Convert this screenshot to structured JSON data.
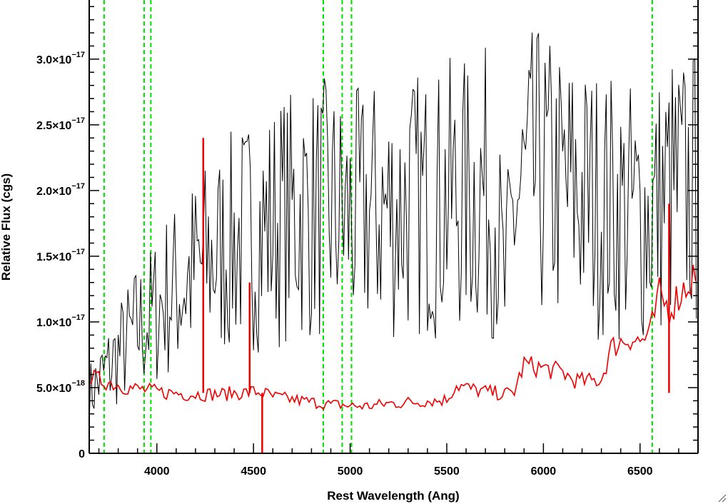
{
  "chart_data": {
    "type": "line",
    "title": "",
    "xlabel": "Rest Wavelength (Ang)",
    "ylabel": "Relative Flux (cgs)",
    "xlim": [
      3650,
      6800
    ],
    "ylim": [
      0,
      3.45e-17
    ],
    "x_ticks": [
      {
        "value": 4000,
        "label": "4000"
      },
      {
        "value": 4500,
        "label": "4500"
      },
      {
        "value": 5000,
        "label": "5000"
      },
      {
        "value": 5500,
        "label": "5500"
      },
      {
        "value": 6000,
        "label": "6000"
      },
      {
        "value": 6500,
        "label": "6500"
      }
    ],
    "y_ticks": [
      {
        "value": 0,
        "mantissa": "0",
        "exponent": ""
      },
      {
        "value": 5e-18,
        "mantissa": "5.0×10",
        "exponent": "−18"
      },
      {
        "value": 1e-17,
        "mantissa": "1.0×10",
        "exponent": "−17"
      },
      {
        "value": 1.5e-17,
        "mantissa": "1.5×10",
        "exponent": "−17"
      },
      {
        "value": 2e-17,
        "mantissa": "2.0×10",
        "exponent": "−17"
      },
      {
        "value": 2.5e-17,
        "mantissa": "2.5×10",
        "exponent": "−17"
      },
      {
        "value": 3e-17,
        "mantissa": "3.0×10",
        "exponent": "−17"
      }
    ],
    "grid": false,
    "legend": "none",
    "series": [
      {
        "color": "#000000",
        "x": [
          3650,
          3700,
          3750,
          3800,
          3850,
          3900,
          3950,
          4000,
          4050,
          4100,
          4150,
          4200,
          4250,
          4300,
          4350,
          4400,
          4450,
          4500,
          4550,
          4600,
          4650,
          4700,
          4750,
          4800,
          4850,
          4900,
          4950,
          5000,
          5050,
          5100,
          5150,
          5200,
          5250,
          5300,
          5350,
          5400,
          5450,
          5500,
          5550,
          5600,
          5650,
          5700,
          5750,
          5800,
          5850,
          5900,
          5950,
          6000,
          6050,
          6100,
          6150,
          6200,
          6250,
          6300,
          6350,
          6400,
          6450,
          6500,
          6550,
          6600,
          6650,
          6700,
          6750,
          6800
        ],
        "values": [
          4.5e-18,
          5.5e-18,
          6.5e-18,
          7.5e-18,
          8.5e-18,
          9.5e-18,
          1e-17,
          1.1e-17,
          1.2e-17,
          1.25e-17,
          1.3e-17,
          1.4e-17,
          1.45e-17,
          1.5e-17,
          1.55e-17,
          1.6e-17,
          1.65e-17,
          1.7e-17,
          1.7e-17,
          1.75e-17,
          1.8e-17,
          1.8e-17,
          1.85e-17,
          1.85e-17,
          1.85e-17,
          1.85e-17,
          1.8e-17,
          1.8e-17,
          1.8e-17,
          1.85e-17,
          1.85e-17,
          1.85e-17,
          1.85e-17,
          1.9e-17,
          1.9e-17,
          1.9e-17,
          1.9e-17,
          1.95e-17,
          1.95e-17,
          1.95e-17,
          2e-17,
          2e-17,
          1.9e-17,
          1.2e-17,
          1.9e-17,
          2e-17,
          2.1e-17,
          2.1e-17,
          2.05e-17,
          2e-17,
          2e-17,
          1.95e-17,
          1.95e-17,
          1.9e-17,
          1.9e-17,
          1.85e-17,
          1.85e-17,
          1.8e-17,
          1.8e-17,
          1.9e-17,
          2e-17,
          2e-17,
          2e-17,
          2e-17
        ]
      },
      {
        "color": "#ee0000",
        "x": [
          3650,
          3700,
          3750,
          3800,
          3850,
          3900,
          3950,
          4000,
          4050,
          4100,
          4150,
          4200,
          4250,
          4300,
          4350,
          4400,
          4450,
          4500,
          4550,
          4600,
          4650,
          4700,
          4750,
          4800,
          4850,
          4900,
          4950,
          5000,
          5050,
          5100,
          5150,
          5200,
          5250,
          5300,
          5350,
          5400,
          5450,
          5500,
          5550,
          5600,
          5650,
          5700,
          5750,
          5800,
          5850,
          5900,
          5950,
          6000,
          6050,
          6100,
          6150,
          6200,
          6250,
          6300,
          6350,
          6400,
          6450,
          6500,
          6550,
          6600,
          6650,
          6700,
          6750,
          6800
        ],
        "values": [
          5.8e-18,
          5.6e-18,
          5.4e-18,
          5.2e-18,
          5e-18,
          4.9e-18,
          4.8e-18,
          4.7e-18,
          4.6e-18,
          4.6e-18,
          4.5e-18,
          4.5e-18,
          4.5e-18,
          4.5e-18,
          4.5e-18,
          4.6e-18,
          4.6e-18,
          4.7e-18,
          4.6e-18,
          4.3e-18,
          4.2e-18,
          4.1e-18,
          4e-18,
          3.9e-18,
          3.8e-18,
          3.7e-18,
          3.7e-18,
          3.6e-18,
          3.6e-18,
          3.6e-18,
          3.7e-18,
          3.8e-18,
          3.8e-18,
          3.9e-18,
          3.9e-18,
          4e-18,
          4e-18,
          4.1e-18,
          5.2e-18,
          5e-18,
          4.8e-18,
          4.7e-18,
          4.6e-18,
          4.5e-18,
          4.7e-18,
          6.8e-18,
          6.6e-18,
          6.5e-18,
          6.3e-18,
          6.2e-18,
          5.6e-18,
          5.5e-18,
          5.5e-18,
          5.6e-18,
          8e-18,
          8.5e-18,
          8.8e-18,
          8.5e-18,
          9e-18,
          1.2e-17,
          1.1e-17,
          1.2e-17,
          1.3e-17,
          1.4e-17
        ]
      }
    ],
    "red_spikes": [
      {
        "x": 4240,
        "y": 2.4e-17
      },
      {
        "x": 4480,
        "y": 1.3e-17
      },
      {
        "x": 4545,
        "y": 0
      },
      {
        "x": 6650,
        "y": 1.9e-17
      }
    ],
    "vertical_lines": {
      "color": "#00dd00",
      "style": "dashed",
      "x": [
        3727,
        3934,
        3969,
        4861,
        4959,
        5007,
        6563
      ]
    }
  }
}
